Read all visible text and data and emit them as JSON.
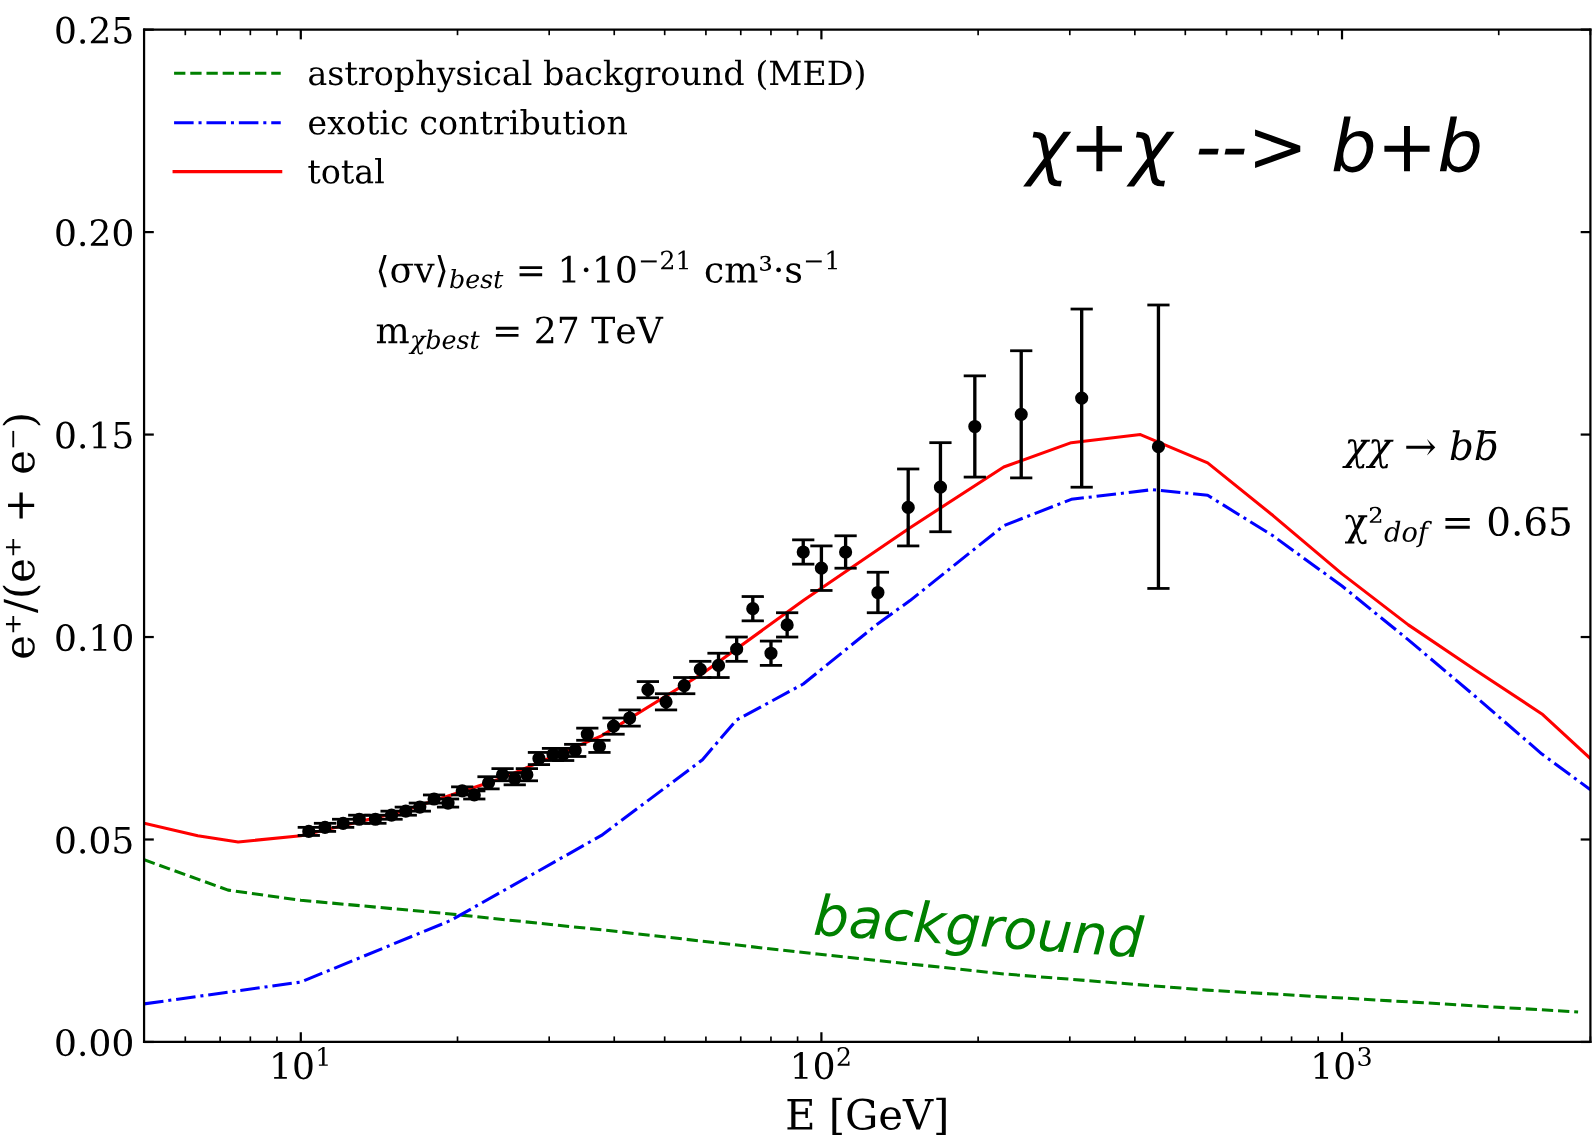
{
  "chart_data": {
    "type": "line",
    "xlabel": "E [GeV]",
    "ylabel": "e⁺/(e⁺ + e⁻)",
    "log": "x",
    "xlim": [
      5,
      3000
    ],
    "ylim": [
      0,
      0.25
    ],
    "xticks": [
      {
        "value": 10,
        "label": "10$^{1}$"
      },
      {
        "value": 100,
        "label": "10$^{2}$"
      },
      {
        "value": 1000,
        "label": "10$^{3}$"
      }
    ],
    "yticks": [
      {
        "value": 0,
        "label": "0.00"
      },
      {
        "value": 0.05,
        "label": "0.05"
      },
      {
        "value": 0.1,
        "label": "0.10"
      },
      {
        "value": 0.15,
        "label": "0.15"
      },
      {
        "value": 0.2,
        "label": "0.20"
      },
      {
        "value": 0.25,
        "label": "0.25"
      }
    ],
    "grid": false,
    "legend": "top left",
    "series": [
      {
        "name": "astrophysical background (MED)",
        "color": "#008000",
        "line_style": "dashed",
        "x": [
          5,
          7.25,
          10,
          19.4,
          37.8,
          98.2,
          224,
          550,
          1341,
          2841
        ],
        "values": [
          0.045,
          0.0375,
          0.035,
          0.0316,
          0.0277,
          0.0217,
          0.0168,
          0.0128,
          0.0099,
          0.0074
        ]
      },
      {
        "name": "exotic contribution",
        "color": "#0000ff",
        "line_style": "dashdot",
        "x": [
          5,
          10,
          19.4,
          37.8,
          59.1,
          68.7,
          92.3,
          128.4,
          148,
          224,
          302,
          432,
          552,
          737,
          1000,
          1341,
          1797,
          2421,
          3000
        ],
        "values": [
          0.0094,
          0.0148,
          0.03,
          0.051,
          0.0697,
          0.0795,
          0.0884,
          0.1033,
          0.109,
          0.1275,
          0.134,
          0.1364,
          0.135,
          0.125,
          0.1126,
          0.0993,
          0.0855,
          0.0711,
          0.0623
        ]
      },
      {
        "name": "total",
        "color": "#ff0000",
        "line_style": "solid",
        "x": [
          5,
          6.34,
          7.58,
          10,
          15.48,
          24.2,
          37.8,
          59.1,
          92.3,
          148,
          224,
          302,
          410,
          552,
          737,
          1000,
          1341,
          1797,
          2421,
          3000
        ],
        "values": [
          0.054,
          0.0509,
          0.0494,
          0.0509,
          0.0568,
          0.065,
          0.0756,
          0.091,
          0.109,
          0.127,
          0.142,
          0.148,
          0.15,
          0.143,
          0.13,
          0.1156,
          0.103,
          0.092,
          0.081,
          0.07
        ]
      },
      {
        "type": "scatter",
        "color": "#000000",
        "marker": "circle",
        "x": [
          10.36,
          11.13,
          12.06,
          12.95,
          13.91,
          14.94,
          15.91,
          16.93,
          18.03,
          19.18,
          20.42,
          21.54,
          22.94,
          24.41,
          25.76,
          27.18,
          28.67,
          30.51,
          31.91,
          33.66,
          35.51,
          37.47,
          39.88,
          42.82,
          46.42,
          50.3,
          54.51,
          58.53,
          63.44,
          68.74,
          73.82,
          80.01,
          85.94,
          92.28,
          100,
          111.3,
          128.4,
          146.8,
          169.3,
          197.1,
          242,
          316.2,
          444
        ],
        "values": [
          0.052,
          0.053,
          0.054,
          0.055,
          0.055,
          0.056,
          0.057,
          0.058,
          0.06,
          0.059,
          0.062,
          0.061,
          0.064,
          0.066,
          0.065,
          0.066,
          0.07,
          0.071,
          0.071,
          0.072,
          0.076,
          0.073,
          0.078,
          0.08,
          0.087,
          0.084,
          0.088,
          0.092,
          0.093,
          0.097,
          0.107,
          0.096,
          0.103,
          0.121,
          0.117,
          0.121,
          0.111,
          0.132,
          0.137,
          0.152,
          0.155,
          0.159,
          0.147
        ],
        "errors": [
          0.001,
          0.001,
          0.001,
          0.001,
          0.001,
          0.001,
          0.001,
          0.001,
          0.001,
          0.001,
          0.001,
          0.001,
          0.0015,
          0.0015,
          0.0015,
          0.0015,
          0.0015,
          0.0015,
          0.0015,
          0.0015,
          0.0015,
          0.0015,
          0.002,
          0.002,
          0.002,
          0.002,
          0.002,
          0.002,
          0.003,
          0.003,
          0.003,
          0.003,
          0.003,
          0.003,
          0.0055,
          0.004,
          0.005,
          0.0095,
          0.011,
          0.0125,
          0.0157,
          0.022,
          0.035
        ]
      }
    ],
    "annotations": [
      "⟨σv⟩$_{best}$ = 1·10$^{−21}$ cm³·s$^{−1}$",
      "m$_{χbest}$ = 27 TeV",
      "χχ → bb̄",
      "χ²$_{dof}$ = 0.65",
      "χ+χ --> b+b",
      {
        "text": "background",
        "x": 200,
        "y": 0.018
      }
    ]
  }
}
